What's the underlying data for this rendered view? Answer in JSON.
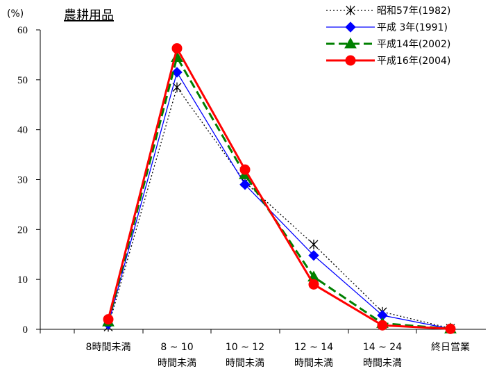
{
  "chart_data": {
    "type": "line",
    "title": "農耕用品",
    "ylabel": "(%)",
    "ylim": [
      0,
      60
    ],
    "yticks": [
      "0",
      "10",
      "20",
      "30",
      "40",
      "50",
      "60"
    ],
    "categories": [
      [
        "8時間未満"
      ],
      [
        "8 ~ 10",
        "時間未満"
      ],
      [
        "10 ~ 12",
        "時間未満"
      ],
      [
        "12 ~ 14",
        "時間未満"
      ],
      [
        "14 ~ 24",
        "時間未満"
      ],
      [
        "終日営業"
      ]
    ],
    "legend_position": "top-right",
    "series": [
      {
        "name": "昭和57年(1982)",
        "values": [
          0.5,
          48.5,
          29.5,
          17,
          3.5,
          0.2
        ],
        "color": "#000000",
        "marker": "asterisk",
        "dash": "2,3"
      },
      {
        "name": "平成 3年(1991)",
        "values": [
          1,
          51.5,
          29,
          14.8,
          2.8,
          0.1
        ],
        "color": "#0000ff",
        "marker": "diamond",
        "dash": ""
      },
      {
        "name": "平成14年(2002)",
        "values": [
          1.5,
          54.5,
          31,
          10.5,
          1.2,
          0.1
        ],
        "color": "#008000",
        "marker": "triangle",
        "dash": "12,6"
      },
      {
        "name": "平成16年(2004)",
        "values": [
          2,
          56.3,
          32,
          9,
          0.8,
          0.1
        ],
        "color": "#ff0000",
        "marker": "circle",
        "dash": ""
      }
    ]
  }
}
